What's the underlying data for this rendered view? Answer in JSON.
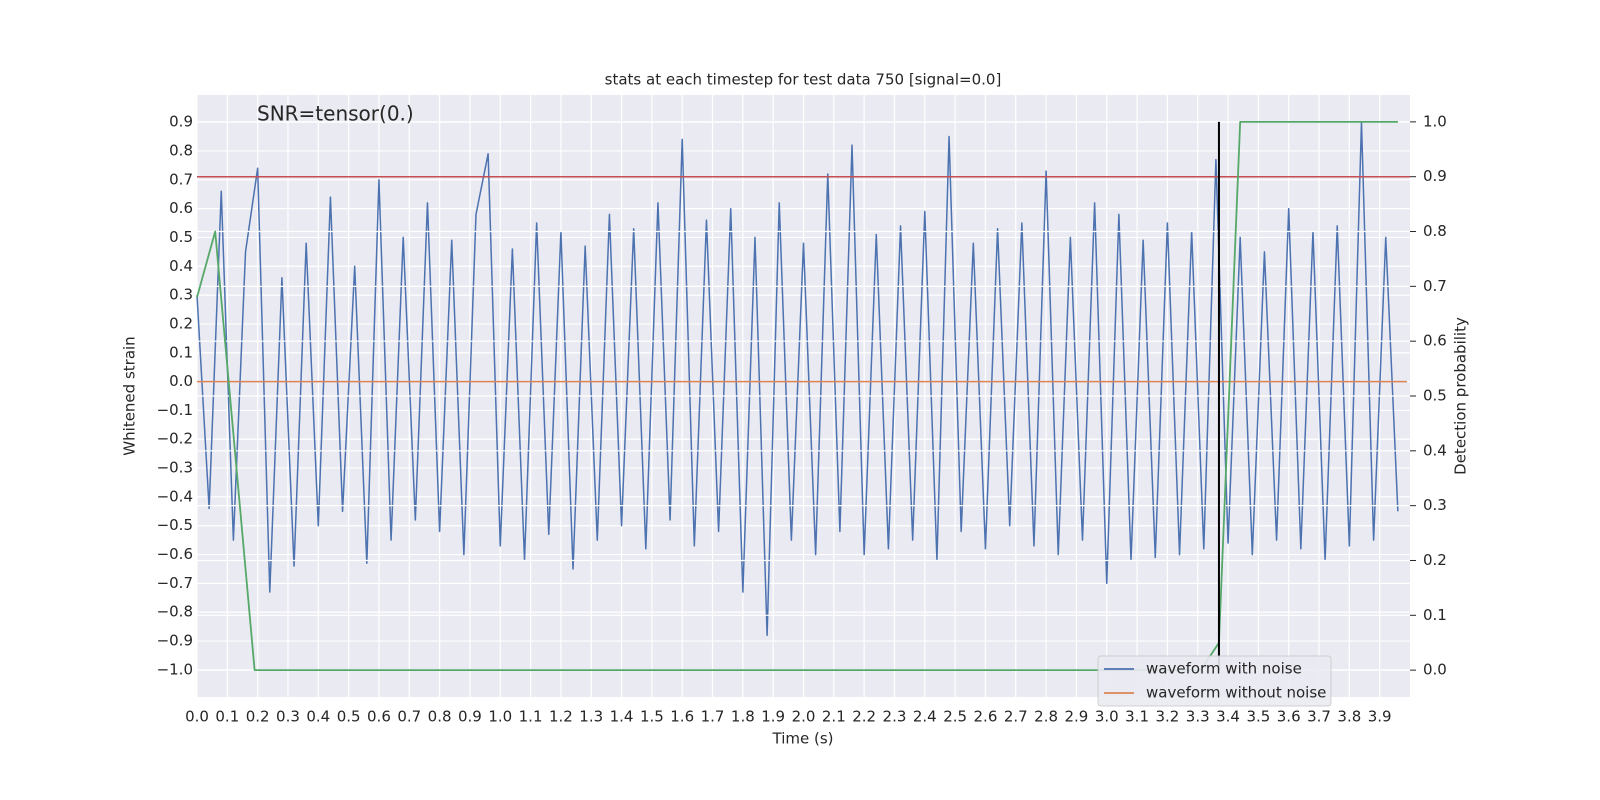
{
  "chart_data": {
    "type": "line",
    "title": "stats at each timestep for test data 750 [signal=0.0]",
    "xlabel": "Time (s)",
    "ylabel": "Whitened strain",
    "y2label": "Detection probability",
    "annotation": "SNR=tensor(0.)",
    "grid": true,
    "legend": "lower right",
    "xlim": [
      0,
      4.0
    ],
    "ylim": [
      -1.094,
      0.994
    ],
    "y2lim": [
      -0.049,
      1.049
    ],
    "xticks": [
      {
        "value": 0,
        "label": "0.0"
      },
      {
        "value": 0.1,
        "label": "0.1"
      },
      {
        "value": 0.2,
        "label": "0.2"
      },
      {
        "value": 0.3,
        "label": "0.3"
      },
      {
        "value": 0.4,
        "label": "0.4"
      },
      {
        "value": 0.5,
        "label": "0.5"
      },
      {
        "value": 0.6,
        "label": "0.6"
      },
      {
        "value": 0.7,
        "label": "0.7"
      },
      {
        "value": 0.8,
        "label": "0.8"
      },
      {
        "value": 0.9,
        "label": "0.9"
      },
      {
        "value": 1,
        "label": "1.0"
      },
      {
        "value": 1.1,
        "label": "1.1"
      },
      {
        "value": 1.2,
        "label": "1.2"
      },
      {
        "value": 1.3,
        "label": "1.3"
      },
      {
        "value": 1.4,
        "label": "1.4"
      },
      {
        "value": 1.5,
        "label": "1.5"
      },
      {
        "value": 1.6,
        "label": "1.6"
      },
      {
        "value": 1.7,
        "label": "1.7"
      },
      {
        "value": 1.8,
        "label": "1.8"
      },
      {
        "value": 1.9,
        "label": "1.9"
      },
      {
        "value": 2,
        "label": "2.0"
      },
      {
        "value": 2.1,
        "label": "2.1"
      },
      {
        "value": 2.2,
        "label": "2.2"
      },
      {
        "value": 2.3,
        "label": "2.3"
      },
      {
        "value": 2.4,
        "label": "2.4"
      },
      {
        "value": 2.5,
        "label": "2.5"
      },
      {
        "value": 2.6,
        "label": "2.6"
      },
      {
        "value": 2.7,
        "label": "2.7"
      },
      {
        "value": 2.8,
        "label": "2.8"
      },
      {
        "value": 2.9,
        "label": "2.9"
      },
      {
        "value": 3,
        "label": "3.0"
      },
      {
        "value": 3.1,
        "label": "3.1"
      },
      {
        "value": 3.2,
        "label": "3.2"
      },
      {
        "value": 3.3,
        "label": "3.3"
      },
      {
        "value": 3.4,
        "label": "3.4"
      },
      {
        "value": 3.5,
        "label": "3.5"
      },
      {
        "value": 3.6,
        "label": "3.6"
      },
      {
        "value": 3.7,
        "label": "3.7"
      },
      {
        "value": 3.8,
        "label": "3.8"
      },
      {
        "value": 3.9,
        "label": "3.9"
      }
    ],
    "yticks": [
      {
        "value": -1,
        "label": "−1.0"
      },
      {
        "value": -0.9,
        "label": "−0.9"
      },
      {
        "value": -0.8,
        "label": "−0.8"
      },
      {
        "value": -0.7,
        "label": "−0.7"
      },
      {
        "value": -0.6,
        "label": "−0.6"
      },
      {
        "value": -0.5,
        "label": "−0.5"
      },
      {
        "value": -0.4,
        "label": "−0.4"
      },
      {
        "value": -0.3,
        "label": "−0.3"
      },
      {
        "value": -0.2,
        "label": "−0.2"
      },
      {
        "value": -0.1,
        "label": "−0.1"
      },
      {
        "value": 0,
        "label": "0.0"
      },
      {
        "value": 0.1,
        "label": "0.1"
      },
      {
        "value": 0.2,
        "label": "0.2"
      },
      {
        "value": 0.3,
        "label": "0.3"
      },
      {
        "value": 0.4,
        "label": "0.4"
      },
      {
        "value": 0.5,
        "label": "0.5"
      },
      {
        "value": 0.6,
        "label": "0.6"
      },
      {
        "value": 0.7,
        "label": "0.7"
      },
      {
        "value": 0.8,
        "label": "0.8"
      },
      {
        "value": 0.9,
        "label": "0.9"
      }
    ],
    "y2ticks": [
      {
        "value": 0,
        "label": "0.0"
      },
      {
        "value": 0.1,
        "label": "0.1"
      },
      {
        "value": 0.2,
        "label": "0.2"
      },
      {
        "value": 0.3,
        "label": "0.3"
      },
      {
        "value": 0.4,
        "label": "0.4"
      },
      {
        "value": 0.5,
        "label": "0.5"
      },
      {
        "value": 0.6,
        "label": "0.6"
      },
      {
        "value": 0.7,
        "label": "0.7"
      },
      {
        "value": 0.8,
        "label": "0.8"
      },
      {
        "value": 0.9,
        "label": "0.9"
      },
      {
        "value": 1,
        "label": "1.0"
      }
    ],
    "series": [
      {
        "name": "waveform with noise",
        "color": "#4c72b0",
        "x": [
          0,
          0.04,
          0.08,
          0.12,
          0.16,
          0.2,
          0.24,
          0.28,
          0.32,
          0.36,
          0.4,
          0.44,
          0.48,
          0.52,
          0.56,
          0.6,
          0.64,
          0.68,
          0.72,
          0.76,
          0.8,
          0.84,
          0.88,
          0.92,
          0.96,
          1,
          1.04,
          1.08,
          1.12,
          1.16,
          1.2,
          1.24,
          1.28,
          1.32,
          1.36,
          1.4,
          1.44,
          1.48,
          1.52,
          1.56,
          1.6,
          1.64,
          1.68,
          1.72,
          1.76,
          1.8,
          1.84,
          1.88,
          1.92,
          1.96,
          2,
          2.04,
          2.08,
          2.12,
          2.16,
          2.2,
          2.24,
          2.28,
          2.32,
          2.36,
          2.4,
          2.44,
          2.48,
          2.52,
          2.56,
          2.6,
          2.64,
          2.68,
          2.72,
          2.76,
          2.8,
          2.84,
          2.88,
          2.92,
          2.96,
          3,
          3.04,
          3.08,
          3.12,
          3.16,
          3.2,
          3.24,
          3.28,
          3.32,
          3.36,
          3.4,
          3.44,
          3.48,
          3.52,
          3.56,
          3.6,
          3.64,
          3.68,
          3.72,
          3.76,
          3.8,
          3.84,
          3.88,
          3.92,
          3.96
        ],
        "values": [
          0.3,
          -0.44,
          0.66,
          -0.55,
          0.45,
          0.74,
          -0.73,
          0.36,
          -0.64,
          0.48,
          -0.5,
          0.64,
          -0.45,
          0.4,
          -0.63,
          0.7,
          -0.55,
          0.5,
          -0.48,
          0.62,
          -0.52,
          0.49,
          -0.6,
          0.58,
          0.79,
          -0.57,
          0.46,
          -0.62,
          0.55,
          -0.53,
          0.52,
          -0.65,
          0.47,
          -0.55,
          0.58,
          -0.5,
          0.53,
          -0.58,
          0.62,
          -0.48,
          0.84,
          -0.57,
          0.56,
          -0.52,
          0.6,
          -0.73,
          0.5,
          -0.88,
          0.62,
          -0.55,
          0.48,
          -0.6,
          0.72,
          -0.52,
          0.82,
          -0.6,
          0.51,
          -0.58,
          0.54,
          -0.55,
          0.59,
          -0.62,
          0.85,
          -0.52,
          0.48,
          -0.58,
          0.53,
          -0.5,
          0.55,
          -0.57,
          0.73,
          -0.6,
          0.5,
          -0.55,
          0.62,
          -0.7,
          0.58,
          -0.62,
          0.49,
          -0.61,
          0.55,
          -0.6,
          0.52,
          -0.58,
          0.77,
          -0.56,
          0.5,
          -0.6,
          0.45,
          -0.55,
          0.6,
          -0.58,
          0.52,
          -0.62,
          0.54,
          -0.57,
          0.9,
          -0.55,
          0.5,
          -0.45
        ]
      },
      {
        "name": "waveform without noise",
        "color": "#dd8452",
        "x": [
          0,
          3.99
        ],
        "values": [
          0,
          0
        ]
      },
      {
        "color": "#55a868",
        "axis": "y2",
        "x": [
          0,
          0.06,
          0.19,
          1.88,
          3.31,
          3.37,
          3.44,
          3.96
        ],
        "values": [
          0.68,
          0.8,
          0,
          0,
          0,
          0.05,
          1,
          1
        ]
      }
    ],
    "hlines": [
      {
        "value": 0.9,
        "axis": "y2",
        "color": "#c44e52"
      }
    ],
    "vlines": [
      {
        "value": 3.37,
        "ymin": 0,
        "ymax": 1,
        "axis": "y2",
        "color": "#000000"
      }
    ]
  }
}
